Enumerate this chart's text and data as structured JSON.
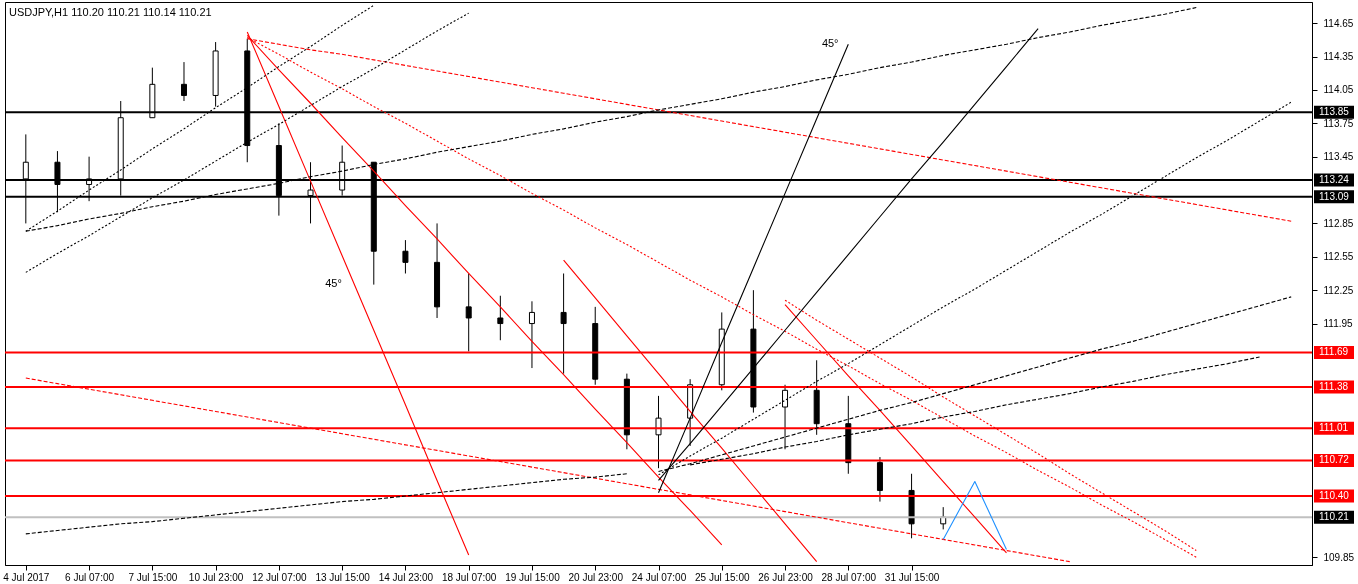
{
  "chart_data": {
    "type": "candlestick",
    "title": "USDJPY,H1  110.20 110.21 110.14 110.21",
    "color": "#000000",
    "categories": [
      "4 Jul 2017",
      null,
      "6 Jul 07:00",
      null,
      "7 Jul 15:00",
      null,
      "10 Jul 23:00",
      null,
      "12 Jul 07:00",
      null,
      "13 Jul 15:00",
      null,
      "14 Jul 23:00",
      null,
      "18 Jul 07:00",
      null,
      "19 Jul 15:00",
      null,
      "20 Jul 23:00",
      null,
      "24 Jul 07:00",
      null,
      "25 Jul 15:00",
      null,
      "26 Jul 23:00",
      null,
      "28 Jul 07:00",
      null,
      "31 Jul 15:00",
      null,
      null,
      null,
      null,
      null,
      null,
      null,
      null,
      null,
      null,
      null,
      null
    ],
    "ohlc": [
      [
        113.25,
        113.65,
        112.85,
        113.4
      ],
      [
        113.4,
        113.5,
        112.95,
        113.2
      ],
      [
        113.2,
        113.45,
        113.05,
        113.25
      ],
      [
        113.25,
        113.95,
        113.1,
        113.8
      ],
      [
        113.8,
        114.25,
        113.8,
        114.1
      ],
      [
        114.1,
        114.3,
        113.95,
        114.0
      ],
      [
        114.0,
        114.48,
        113.9,
        114.4
      ],
      [
        114.4,
        114.51,
        113.4,
        113.55
      ],
      [
        113.55,
        113.75,
        112.92,
        113.1
      ],
      [
        113.1,
        113.4,
        112.85,
        113.15
      ],
      [
        113.15,
        113.55,
        113.1,
        113.4
      ],
      [
        113.4,
        113.4,
        112.3,
        112.6
      ],
      [
        112.6,
        112.7,
        112.4,
        112.5
      ],
      [
        112.5,
        112.85,
        112.0,
        112.1
      ],
      [
        112.1,
        112.4,
        111.7,
        112.0
      ],
      [
        112.0,
        112.2,
        111.8,
        111.95
      ],
      [
        111.95,
        112.15,
        111.55,
        112.05
      ],
      [
        112.05,
        112.4,
        111.5,
        111.95
      ],
      [
        111.95,
        112.1,
        111.4,
        111.45
      ],
      [
        111.45,
        111.5,
        110.82,
        110.95
      ],
      [
        110.95,
        111.3,
        110.65,
        111.1
      ],
      [
        111.1,
        111.45,
        110.85,
        111.4
      ],
      [
        111.4,
        112.05,
        111.35,
        111.9
      ],
      [
        111.9,
        112.25,
        111.15,
        111.2
      ],
      [
        111.2,
        111.4,
        110.82,
        111.35
      ],
      [
        111.35,
        111.62,
        110.95,
        111.05
      ],
      [
        111.05,
        111.3,
        110.6,
        110.7
      ],
      [
        110.7,
        110.75,
        110.35,
        110.45
      ],
      [
        110.45,
        110.6,
        110.02,
        110.15
      ],
      [
        110.15,
        110.3,
        110.1,
        110.21
      ],
      null,
      null,
      null,
      null,
      null,
      null,
      null,
      null,
      null,
      null,
      null
    ],
    "series": [
      {
        "type": "line",
        "color": "#ff0000",
        "line_style": "solid",
        "values": [
          null,
          null,
          null,
          null,
          null,
          null,
          null,
          114.57,
          113.9,
          113.23,
          112.56,
          111.89,
          111.22,
          110.54,
          109.87,
          null,
          null,
          null,
          null,
          null,
          null,
          null,
          null,
          null,
          null,
          null,
          null,
          null,
          null,
          null,
          null,
          null,
          null,
          null,
          null,
          null,
          null,
          null,
          null,
          null,
          null
        ]
      },
      {
        "type": "line",
        "color": "#ff0000",
        "line_style": "solid",
        "values": [
          null,
          null,
          null,
          null,
          null,
          null,
          null,
          114.54,
          114.23,
          113.93,
          113.62,
          113.32,
          113.01,
          112.71,
          112.4,
          112.1,
          111.79,
          111.49,
          111.18,
          110.88,
          110.57,
          110.27,
          109.96,
          null,
          null,
          null,
          null,
          null,
          null,
          null,
          null,
          null,
          null,
          null,
          null,
          null,
          null,
          null,
          null,
          null,
          null
        ]
      },
      {
        "type": "line",
        "color": "#ff0000",
        "line_style": "solid",
        "values": [
          null,
          null,
          null,
          null,
          null,
          null,
          null,
          null,
          null,
          null,
          null,
          null,
          null,
          null,
          null,
          null,
          null,
          112.52,
          112.18,
          111.84,
          111.5,
          111.16,
          110.83,
          110.49,
          110.15,
          109.81,
          null,
          null,
          null,
          null,
          null,
          null,
          null,
          null,
          null,
          null,
          null,
          null,
          null,
          null,
          null
        ]
      },
      {
        "type": "line",
        "color": "#ff0000",
        "line_style": "solid",
        "values": [
          null,
          null,
          null,
          null,
          null,
          null,
          null,
          null,
          null,
          null,
          null,
          null,
          null,
          null,
          null,
          null,
          null,
          null,
          null,
          null,
          null,
          null,
          null,
          null,
          112.12,
          111.8,
          111.48,
          111.17,
          110.85,
          110.53,
          110.21,
          109.89,
          null,
          null,
          null,
          null,
          null,
          null,
          null,
          null,
          null
        ]
      },
      {
        "type": "line",
        "color": "#ff0000",
        "line_style": "dashed",
        "values": [
          null,
          null,
          null,
          null,
          null,
          null,
          null,
          114.51,
          114.46,
          114.41,
          114.37,
          114.32,
          114.27,
          114.22,
          114.17,
          114.12,
          114.07,
          114.02,
          113.97,
          113.92,
          113.87,
          113.82,
          113.77,
          113.72,
          113.67,
          113.62,
          113.57,
          113.52,
          113.47,
          113.42,
          113.37,
          113.32,
          113.27,
          113.22,
          113.17,
          113.12,
          113.07,
          113.02,
          112.97,
          112.92,
          112.87
        ]
      },
      {
        "type": "line",
        "color": "#ff0000",
        "line_style": "dotted",
        "values": [
          null,
          null,
          null,
          null,
          null,
          null,
          null,
          114.52,
          114.37,
          114.21,
          114.06,
          113.9,
          113.75,
          113.59,
          113.43,
          113.28,
          113.12,
          112.97,
          112.81,
          112.66,
          112.5,
          112.34,
          112.19,
          112.03,
          111.88,
          111.72,
          111.57,
          111.41,
          111.26,
          111.1,
          110.94,
          110.79,
          110.63,
          110.48,
          110.32,
          110.17,
          110.01,
          109.85,
          null,
          null,
          null
        ]
      },
      {
        "type": "line",
        "color": "#ff0000",
        "line_style": "dashed",
        "values": [
          111.46,
          111.41,
          111.36,
          111.31,
          111.26,
          111.21,
          111.16,
          111.11,
          111.06,
          111.01,
          110.96,
          110.91,
          110.86,
          110.81,
          110.76,
          110.71,
          110.66,
          110.61,
          110.56,
          110.51,
          110.46,
          110.41,
          110.36,
          110.31,
          110.26,
          110.21,
          110.16,
          110.11,
          110.06,
          110.01,
          109.96,
          109.91,
          109.86,
          109.81,
          null,
          null,
          null,
          null,
          null,
          null,
          null
        ]
      },
      {
        "type": "line",
        "color": "#ff0000",
        "line_style": "dotted",
        "values": [
          null,
          null,
          null,
          null,
          null,
          null,
          null,
          null,
          null,
          null,
          null,
          null,
          null,
          null,
          null,
          null,
          null,
          null,
          null,
          null,
          null,
          null,
          null,
          null,
          112.16,
          111.98,
          111.81,
          111.64,
          111.47,
          111.29,
          111.12,
          110.95,
          110.78,
          110.6,
          110.43,
          110.26,
          110.09,
          109.91,
          null,
          null,
          null
        ]
      },
      {
        "type": "line",
        "color": "#000000",
        "line_style": "solid",
        "values": [
          null,
          null,
          null,
          null,
          null,
          null,
          null,
          null,
          null,
          null,
          null,
          null,
          null,
          null,
          null,
          null,
          null,
          null,
          null,
          null,
          110.43,
          111.1,
          111.78,
          112.45,
          113.12,
          113.79,
          114.46,
          null,
          null,
          null,
          null,
          null,
          null,
          null,
          null,
          null,
          null,
          null,
          null,
          null,
          null
        ]
      },
      {
        "type": "line",
        "color": "#000000",
        "line_style": "solid",
        "values": [
          null,
          null,
          null,
          null,
          null,
          null,
          null,
          null,
          null,
          null,
          null,
          null,
          null,
          null,
          null,
          null,
          null,
          null,
          null,
          null,
          110.54,
          110.87,
          111.21,
          111.55,
          111.89,
          112.23,
          112.57,
          112.91,
          113.25,
          113.58,
          113.92,
          114.26,
          114.6,
          null,
          null,
          null,
          null,
          null,
          null,
          null,
          null
        ]
      },
      {
        "type": "line",
        "color": "#000000",
        "line_style": "dotted",
        "values": [
          null,
          null,
          null,
          null,
          null,
          null,
          null,
          null,
          null,
          null,
          null,
          null,
          null,
          null,
          null,
          null,
          null,
          null,
          null,
          null,
          110.59,
          110.76,
          110.92,
          111.09,
          111.26,
          111.43,
          111.59,
          111.76,
          111.93,
          112.1,
          112.26,
          112.43,
          112.6,
          112.77,
          112.93,
          113.1,
          113.27,
          113.44,
          113.6,
          113.77,
          113.94
        ]
      },
      {
        "type": "line",
        "color": "#000000",
        "line_style": "dashed",
        "values": [
          null,
          null,
          null,
          null,
          null,
          null,
          null,
          null,
          null,
          null,
          null,
          null,
          null,
          null,
          null,
          null,
          null,
          null,
          null,
          null,
          110.62,
          110.69,
          110.77,
          110.85,
          110.93,
          111.01,
          111.09,
          111.17,
          111.24,
          111.32,
          111.4,
          111.48,
          111.56,
          111.64,
          111.72,
          111.79,
          111.87,
          111.95,
          112.03,
          112.11,
          112.19
        ]
      },
      {
        "type": "line",
        "color": "#000000",
        "line_style": "dashed",
        "values": [
          null,
          null,
          null,
          null,
          null,
          null,
          null,
          null,
          null,
          null,
          null,
          null,
          null,
          null,
          null,
          null,
          null,
          null,
          null,
          null,
          null,
          110.68,
          110.73,
          110.78,
          110.84,
          110.89,
          110.95,
          111.0,
          111.05,
          111.11,
          111.16,
          111.22,
          111.27,
          111.32,
          111.38,
          111.43,
          111.49,
          111.54,
          111.59,
          111.65,
          null
        ]
      },
      {
        "type": "line",
        "color": "#000000",
        "line_style": "dashed",
        "values": [
          110.06,
          110.09,
          110.12,
          110.15,
          110.17,
          110.2,
          110.23,
          110.26,
          110.29,
          110.32,
          110.35,
          110.37,
          110.4,
          110.43,
          110.46,
          110.49,
          110.52,
          110.55,
          110.57,
          110.6,
          null,
          null,
          null,
          null,
          null,
          null,
          null,
          null,
          null,
          null,
          null,
          null,
          null,
          null,
          null,
          null,
          null,
          null,
          null,
          null,
          null
        ]
      },
      {
        "type": "line",
        "color": "#000000",
        "line_style": "dotted",
        "values": [
          112.41,
          112.58,
          112.74,
          112.91,
          113.08,
          113.24,
          113.41,
          113.58,
          113.74,
          113.91,
          114.08,
          114.24,
          114.41,
          114.58,
          114.74,
          null,
          null,
          null,
          null,
          null,
          null,
          null,
          null,
          null,
          null,
          null,
          null,
          null,
          null,
          null,
          null,
          null,
          null,
          null,
          null,
          null,
          null,
          null,
          null,
          null,
          null
        ]
      },
      {
        "type": "line",
        "color": "#000000",
        "line_style": "dotted",
        "values": [
          112.78,
          112.96,
          113.15,
          113.33,
          113.52,
          113.7,
          113.89,
          114.07,
          114.26,
          114.44,
          114.63,
          114.81,
          null,
          null,
          null,
          null,
          null,
          null,
          null,
          null,
          null,
          null,
          null,
          null,
          null,
          null,
          null,
          null,
          null,
          null,
          null,
          null,
          null,
          null,
          null,
          null,
          null,
          null,
          null,
          null,
          null
        ]
      },
      {
        "type": "line",
        "color": "#000000",
        "line_style": "dashed",
        "values": [
          112.78,
          112.83,
          112.89,
          112.94,
          113.0,
          113.05,
          113.11,
          113.16,
          113.21,
          113.27,
          113.32,
          113.38,
          113.43,
          113.49,
          113.54,
          113.59,
          113.65,
          113.7,
          113.76,
          113.81,
          113.87,
          113.92,
          113.97,
          114.03,
          114.08,
          114.14,
          114.19,
          114.25,
          114.3,
          114.36,
          114.41,
          114.46,
          114.52,
          114.57,
          114.63,
          114.68,
          114.73,
          114.79,
          null,
          null,
          null
        ]
      },
      {
        "type": "line",
        "color": "#1e90ff",
        "line_style": "solid",
        "values": [
          null,
          null,
          null,
          null,
          null,
          null,
          null,
          null,
          null,
          null,
          null,
          null,
          null,
          null,
          null,
          null,
          null,
          null,
          null,
          null,
          null,
          null,
          null,
          null,
          null,
          null,
          null,
          null,
          null,
          110.01,
          110.53,
          109.92,
          null,
          null,
          null,
          null,
          null,
          null,
          null,
          null,
          null
        ]
      }
    ],
    "ylim": [
      109.78,
      114.84
    ],
    "yticks": [
      114.65,
      114.35,
      114.05,
      113.75,
      113.45,
      112.85,
      112.55,
      112.25,
      111.95,
      109.85
    ],
    "ref_lines": [
      {
        "axis": "y",
        "value": 113.85,
        "label": "113.85",
        "color": "#000000"
      },
      {
        "axis": "y",
        "value": 113.24,
        "label": "113.24",
        "color": "#000000"
      },
      {
        "axis": "y",
        "value": 113.09,
        "label": "113.09",
        "color": "#000000"
      },
      {
        "axis": "y",
        "value": 111.69,
        "label": "111.69",
        "color": "#ff0000"
      },
      {
        "axis": "y",
        "value": 111.38,
        "label": "111.38",
        "color": "#ff0000"
      },
      {
        "axis": "y",
        "value": 111.01,
        "label": "111.01",
        "color": "#ff0000"
      },
      {
        "axis": "y",
        "value": 110.72,
        "label": "110.72",
        "color": "#ff0000"
      },
      {
        "axis": "y",
        "value": 110.4,
        "label": "110.40",
        "color": "#ff0000"
      },
      {
        "axis": "y",
        "value": 110.21,
        "label": "110.21",
        "color": "#c0c0c0"
      }
    ],
    "annotations": [
      "45°",
      "45°"
    ],
    "grid": false
  }
}
